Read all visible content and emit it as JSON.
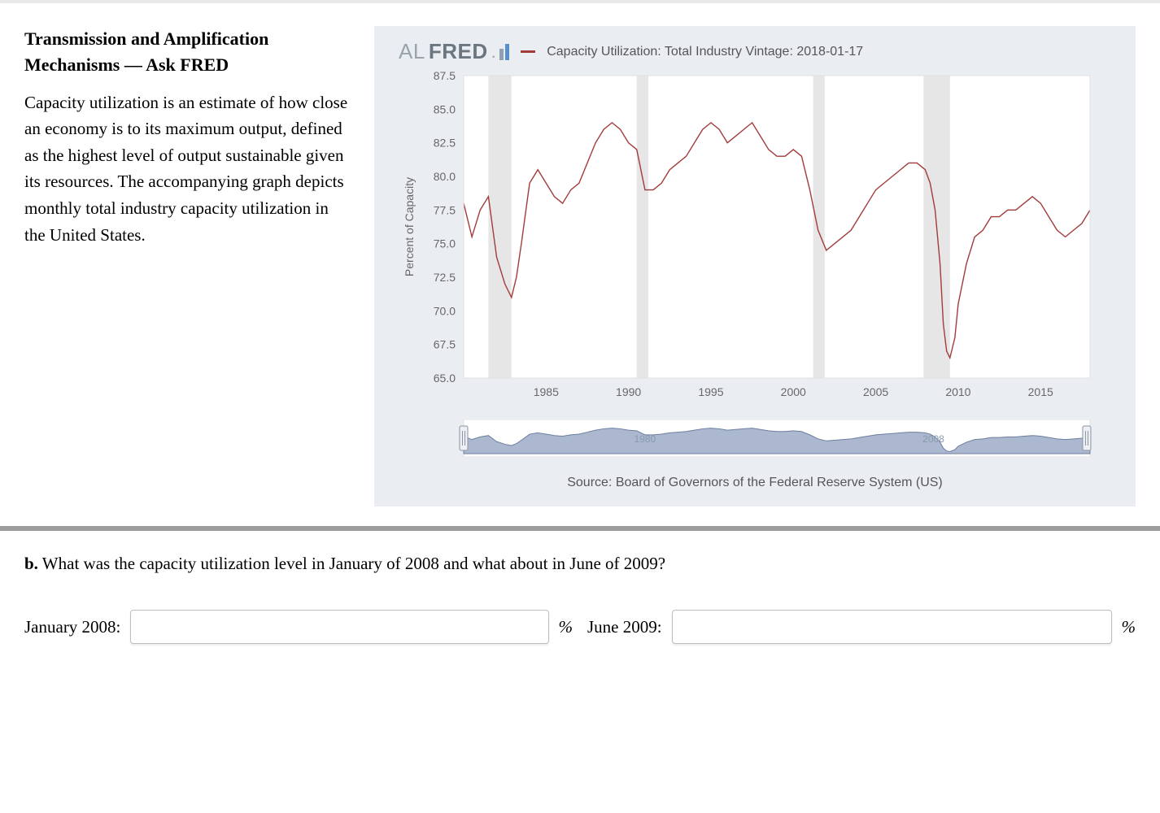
{
  "heading": "Transmission and Amplification Mechanisms — Ask FRED",
  "body": "Capacity utilization is an estimate of how close an economy is to its maximum output, defined as the highest level of output sustainable given its resources. The accompanying graph depicts monthly total industry capacity utilization in the United States.",
  "chart": {
    "type": "line",
    "logo_al": "AL",
    "logo_fred": "FRED",
    "legend_label": "Capacity Utilization: Total Industry Vintage: 2018-01-17",
    "y_axis_label": "Percent of Capacity",
    "series_color": "#a23c3c",
    "background_color": "#eaeef3",
    "plot_bg": "#ffffff",
    "grid_color": "#e0e0e0",
    "recession_band_color": "#e6e6e6",
    "range_fill_color": "#8fa0c0",
    "axis_text_color": "#666666",
    "tick_fontsize": 14,
    "label_fontsize": 14,
    "x_domain": [
      1980,
      2018
    ],
    "y_domain": [
      65.0,
      87.5
    ],
    "y_ticks": [
      65.0,
      67.5,
      70.0,
      72.5,
      75.0,
      77.5,
      80.0,
      82.5,
      85.0,
      87.5
    ],
    "x_ticks": [
      1985,
      1990,
      1995,
      2000,
      2005,
      2010,
      2015
    ],
    "recession_bands": [
      [
        1981.5,
        1982.9
      ],
      [
        1990.5,
        1991.2
      ],
      [
        2001.2,
        2001.9
      ],
      [
        2007.9,
        2009.5
      ]
    ],
    "line_width": 1.4,
    "series": [
      [
        1980.0,
        78.0
      ],
      [
        1980.5,
        75.5
      ],
      [
        1981.0,
        77.5
      ],
      [
        1981.5,
        78.5
      ],
      [
        1982.0,
        74.0
      ],
      [
        1982.5,
        72.0
      ],
      [
        1982.9,
        71.0
      ],
      [
        1983.2,
        72.5
      ],
      [
        1983.5,
        75.0
      ],
      [
        1984.0,
        79.5
      ],
      [
        1984.5,
        80.5
      ],
      [
        1985.0,
        79.5
      ],
      [
        1985.5,
        78.5
      ],
      [
        1986.0,
        78.0
      ],
      [
        1986.5,
        79.0
      ],
      [
        1987.0,
        79.5
      ],
      [
        1987.5,
        81.0
      ],
      [
        1988.0,
        82.5
      ],
      [
        1988.5,
        83.5
      ],
      [
        1989.0,
        84.0
      ],
      [
        1989.5,
        83.5
      ],
      [
        1990.0,
        82.5
      ],
      [
        1990.5,
        82.0
      ],
      [
        1991.0,
        79.0
      ],
      [
        1991.5,
        79.0
      ],
      [
        1992.0,
        79.5
      ],
      [
        1992.5,
        80.5
      ],
      [
        1993.0,
        81.0
      ],
      [
        1993.5,
        81.5
      ],
      [
        1994.0,
        82.5
      ],
      [
        1994.5,
        83.5
      ],
      [
        1995.0,
        84.0
      ],
      [
        1995.5,
        83.5
      ],
      [
        1996.0,
        82.5
      ],
      [
        1996.5,
        83.0
      ],
      [
        1997.0,
        83.5
      ],
      [
        1997.5,
        84.0
      ],
      [
        1998.0,
        83.0
      ],
      [
        1998.5,
        82.0
      ],
      [
        1999.0,
        81.5
      ],
      [
        1999.5,
        81.5
      ],
      [
        2000.0,
        82.0
      ],
      [
        2000.5,
        81.5
      ],
      [
        2001.0,
        79.0
      ],
      [
        2001.5,
        76.0
      ],
      [
        2002.0,
        74.5
      ],
      [
        2002.5,
        75.0
      ],
      [
        2003.0,
        75.5
      ],
      [
        2003.5,
        76.0
      ],
      [
        2004.0,
        77.0
      ],
      [
        2004.5,
        78.0
      ],
      [
        2005.0,
        79.0
      ],
      [
        2005.5,
        79.5
      ],
      [
        2006.0,
        80.0
      ],
      [
        2006.5,
        80.5
      ],
      [
        2007.0,
        81.0
      ],
      [
        2007.5,
        81.0
      ],
      [
        2008.0,
        80.5
      ],
      [
        2008.3,
        79.5
      ],
      [
        2008.6,
        77.5
      ],
      [
        2008.9,
        73.5
      ],
      [
        2009.1,
        69.0
      ],
      [
        2009.3,
        67.0
      ],
      [
        2009.5,
        66.5
      ],
      [
        2009.8,
        68.0
      ],
      [
        2010.0,
        70.5
      ],
      [
        2010.5,
        73.5
      ],
      [
        2011.0,
        75.5
      ],
      [
        2011.5,
        76.0
      ],
      [
        2012.0,
        77.0
      ],
      [
        2012.5,
        77.0
      ],
      [
        2013.0,
        77.5
      ],
      [
        2013.5,
        77.5
      ],
      [
        2014.0,
        78.0
      ],
      [
        2014.5,
        78.5
      ],
      [
        2015.0,
        78.0
      ],
      [
        2015.5,
        77.0
      ],
      [
        2016.0,
        76.0
      ],
      [
        2016.5,
        75.5
      ],
      [
        2017.0,
        76.0
      ],
      [
        2017.5,
        76.5
      ],
      [
        2018.0,
        77.5
      ]
    ],
    "range_labels": [
      "1980",
      "2008"
    ],
    "source": "Source: Board of Governors of the Federal Reserve System (US)"
  },
  "question": {
    "prefix": "b.",
    "text": " What was the capacity utilization level in January of 2008 and what about in June of 2009?",
    "label1": "January 2008:",
    "label2": "June 2009:",
    "pct": "%"
  }
}
